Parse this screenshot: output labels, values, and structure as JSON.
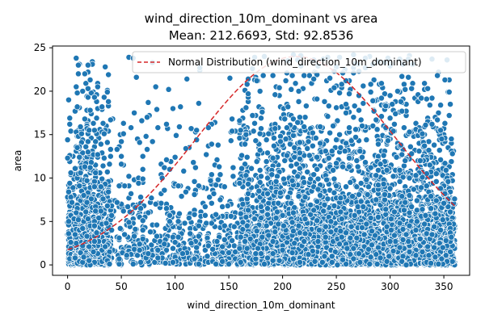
{
  "chart_data": {
    "type": "scatter",
    "title_line1": "wind_direction_10m_dominant vs area",
    "title_line2": "Mean: 212.6693, Std: 92.8536",
    "xlabel": "wind_direction_10m_dominant",
    "ylabel": "area",
    "xlim": [
      -14,
      374
    ],
    "ylim": [
      -1.2,
      25.2
    ],
    "x_ticks": [
      0,
      50,
      100,
      150,
      200,
      250,
      300,
      350
    ],
    "y_ticks": [
      0,
      5,
      10,
      15,
      20,
      25
    ],
    "grid": false,
    "legend": {
      "position": "top-right",
      "entries": [
        "Normal Distribution (wind_direction_10m_dominant)"
      ]
    },
    "series": [
      {
        "kind": "scatter",
        "color": "#1f77b4",
        "edgecolor": "#ffffff",
        "x_range": [
          0,
          360
        ],
        "y_range": [
          0,
          24.2
        ],
        "count_estimate": 6000
      },
      {
        "kind": "line",
        "name": "Normal Distribution (wind_direction_10m_dominant)",
        "color": "#d62728",
        "linestyle": "dashed",
        "mean": 212.6693,
        "std": 92.8536,
        "x_range": [
          0,
          360
        ],
        "peak_y": 24.0
      }
    ]
  }
}
